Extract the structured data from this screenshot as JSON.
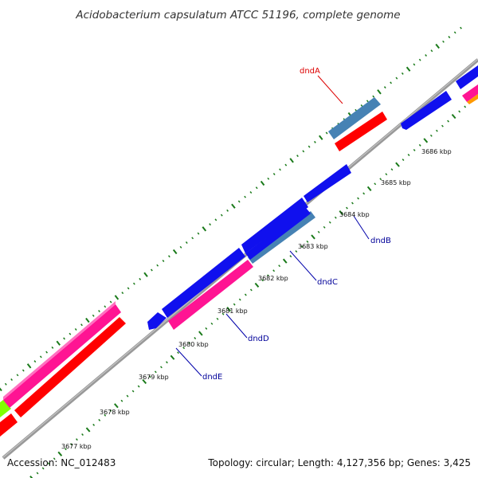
{
  "title": "Acidobacterium capsulatum ATCC 51196, complete genome",
  "accession": "Accession: NC_012483",
  "topology": "Topology: circular; Length: 4,127,356 bp; Genes: 3,425",
  "tick_labels": [
    "3677 kbp",
    "3678 kbp",
    "3679 kbp",
    "3680 kbp",
    "3681 kbp",
    "3682 kbp",
    "3683 kbp",
    "3684 kbp",
    "3685 kbp",
    "3686 kbp"
  ],
  "gene_labels": [
    {
      "name": "dndA",
      "color": "#dd0000"
    },
    {
      "name": "dndB",
      "color": "#000099"
    },
    {
      "name": "dndC",
      "color": "#000099"
    },
    {
      "name": "dndD",
      "color": "#000099"
    },
    {
      "name": "dndE",
      "color": "#000099"
    }
  ],
  "colors": {
    "backbone": "#999999",
    "tick": "#1a7a1a",
    "blue_gene": "#1010ee",
    "steelblue_gene": "#4682b4",
    "red_gene": "#ff0000",
    "pink_gene": "#ff1493",
    "lime_gene": "#80ff00",
    "orange_gene": "#ff9900"
  }
}
